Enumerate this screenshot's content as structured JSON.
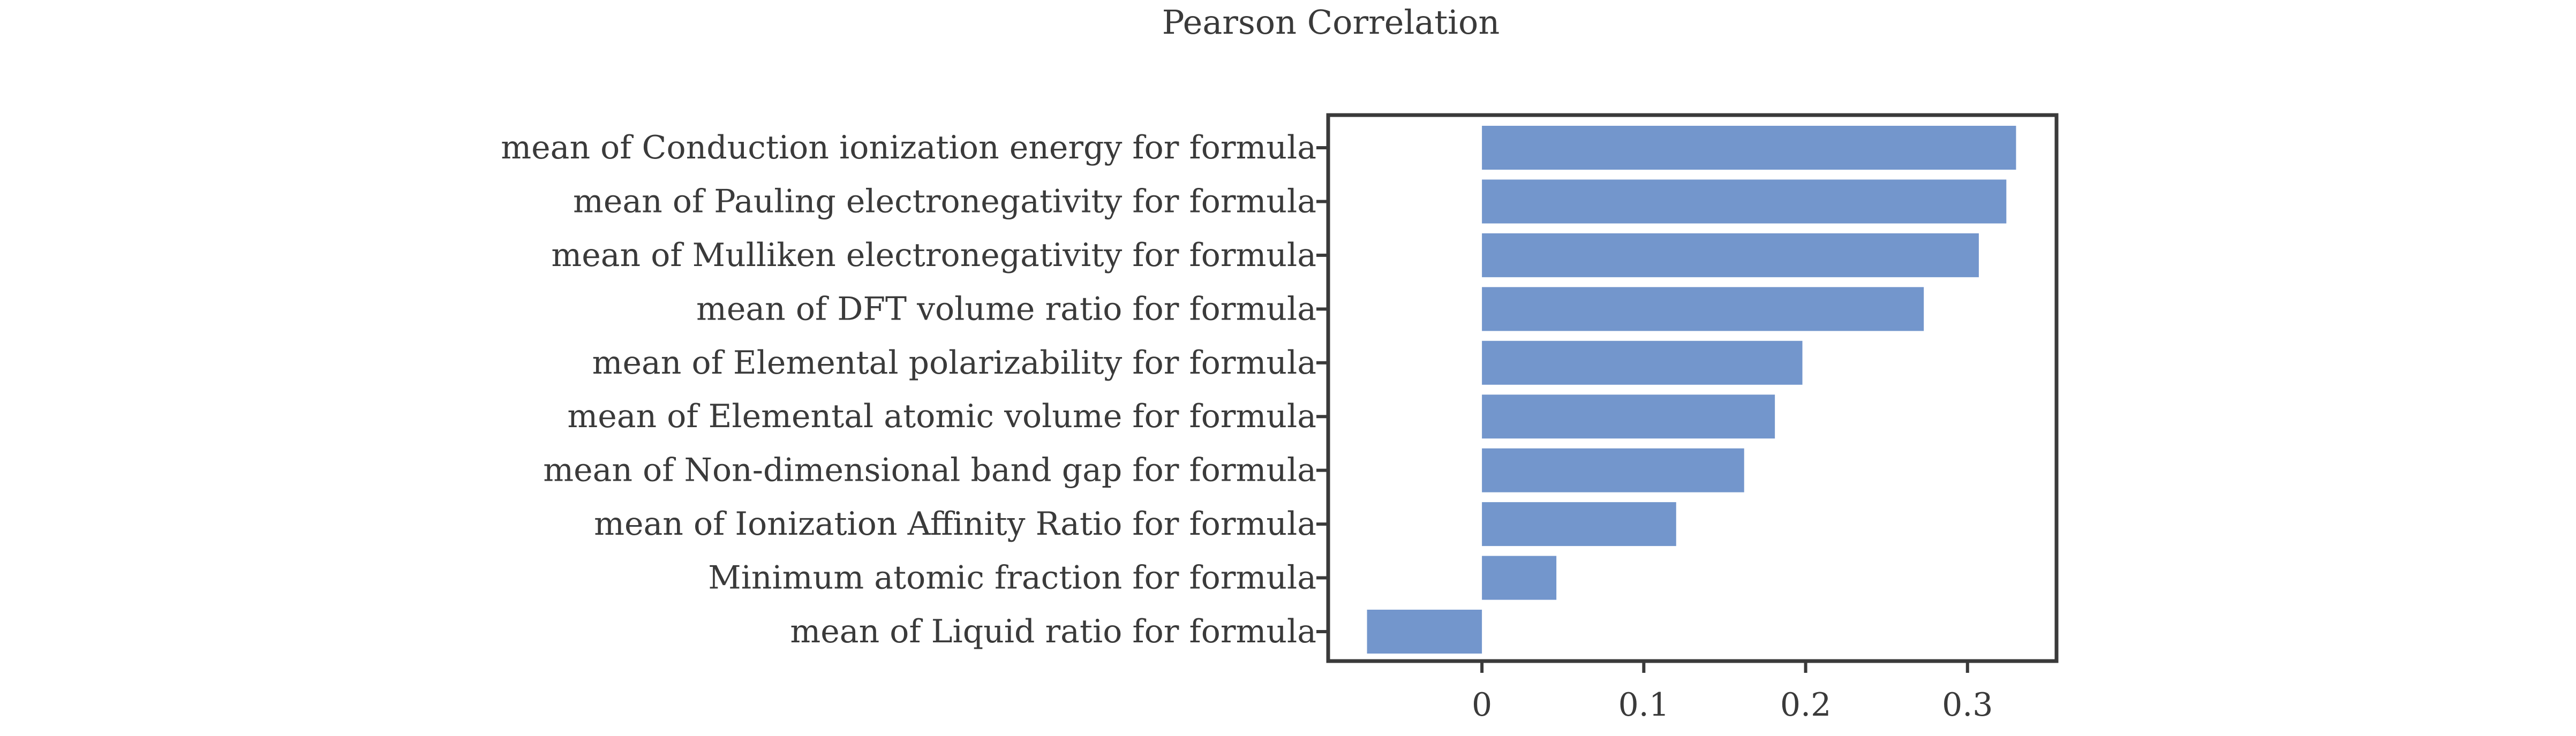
{
  "chart_data": {
    "type": "bar",
    "orientation": "horizontal",
    "title": "Pearson Correlation",
    "categories": [
      "mean of Conduction ionization energy for formula",
      "mean of Pauling electronegativity for formula",
      "mean of Mulliken electronegativity for formula",
      "mean of DFT volume ratio for formula",
      "mean of Elemental polarizability for formula",
      "mean of Elemental atomic volume for formula",
      "mean of Non-dimensional band gap for formula",
      "mean of Ionization Affinity Ratio for formula",
      "Minimum atomic fraction for formula",
      "mean of Liquid ratio for formula"
    ],
    "values": [
      0.33,
      0.324,
      0.307,
      0.273,
      0.198,
      0.181,
      0.162,
      0.12,
      0.046,
      -0.071
    ],
    "xlim": [
      -0.095,
      0.355
    ],
    "xticks": [
      "0",
      "0.1",
      "0.2",
      "0.3"
    ],
    "xtick_values": [
      0,
      0.1,
      0.2,
      0.3
    ],
    "xlabel": "",
    "ylabel": "",
    "grid": false,
    "bar_color": "#7396cc"
  }
}
